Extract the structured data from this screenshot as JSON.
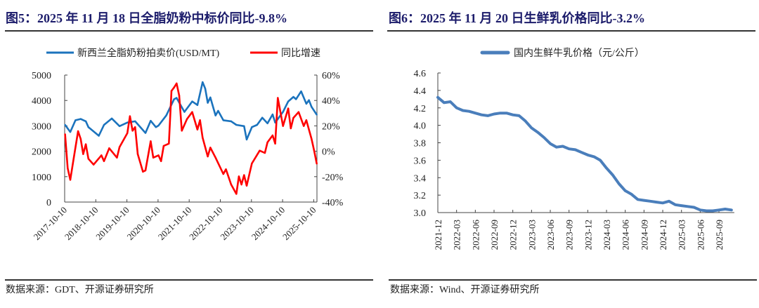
{
  "left": {
    "title": "图5：2025 年 11 月 18 日全脂奶粉中标价同比-9.8%",
    "source": "数据来源：GDT、开源证券研究所"
  },
  "right": {
    "title": "图6：2025 年 11 月 20 日生鲜乳价格同比-3.2%",
    "source": "数据来源：Wind、开源证券研究所"
  },
  "chart_data": [
    {
      "type": "line",
      "title": "图5：2025 年 11 月 18 日全脂奶粉中标价同比-9.8%",
      "legend_position": "top",
      "grid": false,
      "x_ticks": [
        "2017-10-10",
        "2018-10-10",
        "2019-10-10",
        "2020-10-10",
        "2021-10-10",
        "2022-10-10",
        "2023-10-10",
        "2024-10-10",
        "2025-10-10"
      ],
      "y_left": {
        "range": [
          0,
          5000
        ],
        "ticks": [
          "0",
          "1000",
          "2000",
          "3000",
          "4000",
          "5000"
        ]
      },
      "y_right": {
        "range": [
          -40,
          60
        ],
        "ticks": [
          "-40%",
          "-20%",
          "0%",
          "20%",
          "40%",
          "60%"
        ]
      },
      "series": [
        {
          "name": "新西兰全脂奶粉拍卖价(USD/MT)",
          "axis": "left",
          "color": "#1b73bd",
          "x": [
            "2017-10",
            "2017-12",
            "2018-02",
            "2018-04",
            "2018-06",
            "2018-07",
            "2018-11",
            "2019-01",
            "2019-04",
            "2019-07",
            "2019-10",
            "2020-01",
            "2020-05",
            "2020-07",
            "2020-09",
            "2020-10",
            "2021-01",
            "2021-04",
            "2021-05",
            "2021-08",
            "2021-11",
            "2022-01",
            "2022-03",
            "2022-04",
            "2022-05",
            "2022-06",
            "2022-08",
            "2022-09",
            "2022-11",
            "2023-02",
            "2023-04",
            "2023-07",
            "2023-08",
            "2023-10",
            "2023-12",
            "2024-02",
            "2024-04",
            "2024-06",
            "2024-07",
            "2024-10",
            "2024-12",
            "2025-02",
            "2025-03",
            "2025-05",
            "2025-07",
            "2025-08",
            "2025-09",
            "2025-11"
          ],
          "values": [
            3040,
            2760,
            3220,
            3270,
            3180,
            2950,
            2610,
            3040,
            3290,
            2990,
            3130,
            3180,
            2720,
            3200,
            2950,
            3010,
            3410,
            4050,
            4100,
            3550,
            3960,
            3820,
            4720,
            4470,
            3910,
            4120,
            3410,
            3590,
            3220,
            3180,
            3040,
            2990,
            2460,
            2950,
            3040,
            3320,
            3100,
            3450,
            3130,
            3550,
            3960,
            4140,
            4050,
            4360,
            3870,
            4010,
            3750,
            3440
          ]
        },
        {
          "name": "同比增速",
          "axis": "right",
          "color": "#ff0000",
          "x": [
            "2017-10",
            "2017-11",
            "2017-12",
            "2018-01",
            "2018-03",
            "2018-04",
            "2018-05",
            "2018-06",
            "2018-07",
            "2018-09",
            "2018-12",
            "2019-01",
            "2019-03",
            "2019-06",
            "2019-07",
            "2019-10",
            "2019-11",
            "2019-12",
            "2020-01",
            "2020-02",
            "2020-04",
            "2020-05",
            "2020-07",
            "2020-08",
            "2020-10",
            "2020-11",
            "2020-12",
            "2021-02",
            "2021-03",
            "2021-04",
            "2021-05",
            "2021-06",
            "2021-07",
            "2021-09",
            "2021-11",
            "2022-01",
            "2022-02",
            "2022-03",
            "2022-05",
            "2022-06",
            "2022-08",
            "2022-11",
            "2022-12",
            "2023-02",
            "2023-04",
            "2023-05",
            "2023-06",
            "2023-07",
            "2023-08",
            "2023-10",
            "2024-01",
            "2024-03",
            "2024-04",
            "2024-06",
            "2024-07",
            "2024-08",
            "2024-10",
            "2024-12",
            "2025-01",
            "2025-02",
            "2025-04",
            "2025-06",
            "2025-07",
            "2025-09",
            "2025-10",
            "2025-11"
          ],
          "values": [
            13.4,
            -13.3,
            -22.5,
            -9.6,
            15.8,
            9.7,
            -2.2,
            5.5,
            -5.9,
            -10.5,
            -3.2,
            -7.8,
            2.4,
            -5.0,
            3.3,
            14.3,
            27.6,
            16.2,
            19.0,
            -2.2,
            -16.1,
            -15.1,
            7.9,
            -5.0,
            -3.2,
            -7.8,
            4.2,
            6.0,
            47.5,
            50.2,
            53.4,
            43.8,
            16.2,
            25.4,
            30.9,
            17.1,
            24.5,
            10.7,
            -4.1,
            2.9,
            -5.0,
            -17.9,
            -14.2,
            -26.2,
            -33.6,
            -19.8,
            -26.2,
            -18.8,
            -27.1,
            -9.6,
            0.5,
            -1.3,
            7.0,
            12.5,
            6.0,
            42.0,
            19.9,
            33.7,
            18.0,
            26.3,
            30.9,
            19.9,
            24.5,
            9.7,
            0.5,
            -9.8
          ]
        }
      ]
    },
    {
      "type": "line",
      "title": "图6：2025 年 11 月 20 日生鲜乳价格同比-3.2%",
      "legend_position": "top",
      "grid": false,
      "x_ticks": [
        "2021-12",
        "2022-03",
        "2022-06",
        "2022-09",
        "2022-12",
        "2023-03",
        "2023-06",
        "2023-09",
        "2023-12",
        "2024-03",
        "2024-06",
        "2024-09",
        "2024-12",
        "2025-03",
        "2025-06",
        "2025-09"
      ],
      "y": {
        "range": [
          3.0,
          4.6
        ],
        "ticks": [
          "3.0",
          "3.2",
          "3.4",
          "3.6",
          "3.8",
          "4.0",
          "4.2",
          "4.4",
          "4.6"
        ]
      },
      "series": [
        {
          "name": "国内生鲜牛乳价格（元/公斤）",
          "color": "#4a7ebb",
          "x": [
            "2021-12",
            "2022-01",
            "2022-02",
            "2022-03",
            "2022-04",
            "2022-05",
            "2022-06",
            "2022-07",
            "2022-08",
            "2022-09",
            "2022-10",
            "2022-11",
            "2022-12",
            "2023-01",
            "2023-02",
            "2023-03",
            "2023-04",
            "2023-05",
            "2023-06",
            "2023-07",
            "2023-08",
            "2023-09",
            "2023-10",
            "2023-11",
            "2023-12",
            "2024-01",
            "2024-02",
            "2024-03",
            "2024-04",
            "2024-05",
            "2024-06",
            "2024-07",
            "2024-08",
            "2024-09",
            "2024-10",
            "2024-11",
            "2024-12",
            "2025-01",
            "2025-02",
            "2025-03",
            "2025-04",
            "2025-05",
            "2025-06",
            "2025-07",
            "2025-08",
            "2025-09",
            "2025-10",
            "2025-11"
          ],
          "values": [
            4.32,
            4.26,
            4.27,
            4.2,
            4.17,
            4.16,
            4.14,
            4.12,
            4.11,
            4.13,
            4.14,
            4.14,
            4.12,
            4.11,
            4.05,
            3.97,
            3.92,
            3.86,
            3.79,
            3.75,
            3.76,
            3.73,
            3.72,
            3.69,
            3.66,
            3.64,
            3.6,
            3.51,
            3.43,
            3.33,
            3.25,
            3.21,
            3.15,
            3.14,
            3.13,
            3.12,
            3.11,
            3.13,
            3.09,
            3.08,
            3.07,
            3.06,
            3.03,
            3.02,
            3.02,
            3.03,
            3.04,
            3.03
          ]
        }
      ]
    }
  ]
}
